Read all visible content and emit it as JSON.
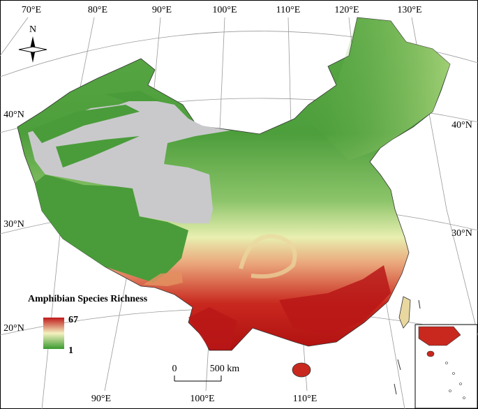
{
  "map": {
    "longitude_labels_top": [
      "70°E",
      "80°E",
      "90°E",
      "100°E",
      "110°E",
      "120°E",
      "130°E"
    ],
    "longitude_labels_bottom": [
      "90°E",
      "100°E",
      "110°E"
    ],
    "latitude_labels_left": [
      "40°N",
      "30°N",
      "20°N"
    ],
    "latitude_labels_right": [
      "40°N",
      "30°N"
    ],
    "north_arrow": "N",
    "legend": {
      "title": "Amphibian Species Richness",
      "max": 67,
      "min": 1
    },
    "scale_bar": {
      "start": "0",
      "end": "500 km"
    }
  }
}
